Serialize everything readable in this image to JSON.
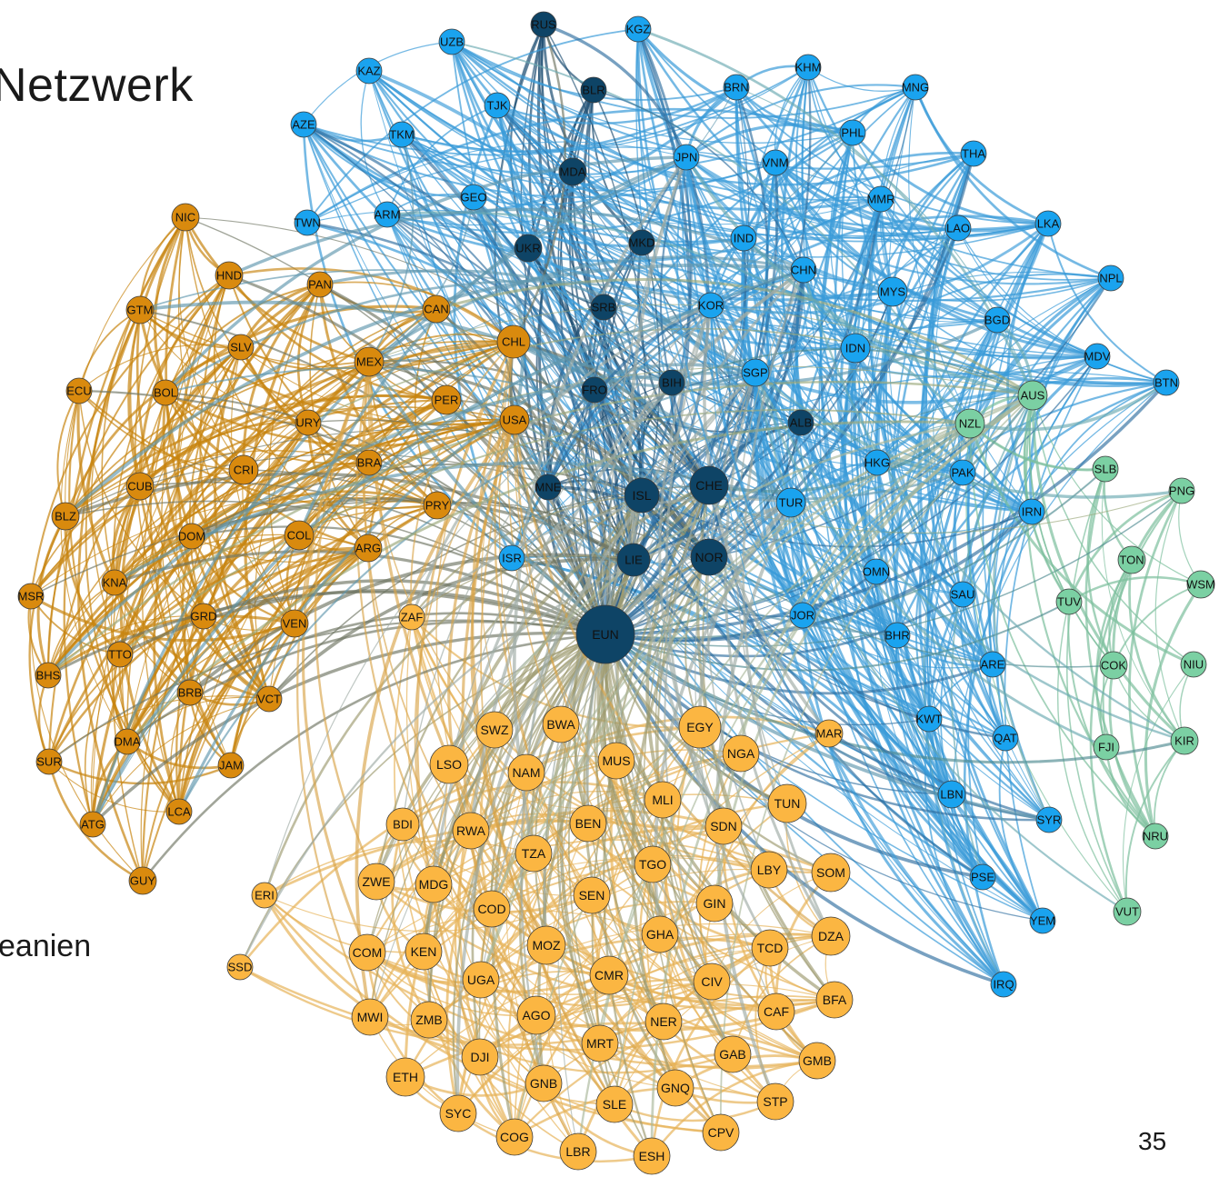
{
  "slide": {
    "title": "Netzwerk",
    "side_text": "eanien",
    "page_number": "35"
  },
  "colors": {
    "gold": "#fbb642",
    "amber": "#d98a0e",
    "navy": "#0e4466",
    "blue": "#1aa3ef",
    "green": "#7bd0a3"
  },
  "network": {
    "nodes": [
      {
        "id": "RUS",
        "group": "navy"
      },
      {
        "id": "KGZ",
        "group": "blue"
      },
      {
        "id": "UZB",
        "group": "blue"
      },
      {
        "id": "KAZ",
        "group": "blue"
      },
      {
        "id": "BLR",
        "group": "navy"
      },
      {
        "id": "TJK",
        "group": "blue"
      },
      {
        "id": "AZE",
        "group": "blue"
      },
      {
        "id": "TKM",
        "group": "blue"
      },
      {
        "id": "MDA",
        "group": "navy"
      },
      {
        "id": "GEO",
        "group": "blue"
      },
      {
        "id": "ARM",
        "group": "blue"
      },
      {
        "id": "UKR",
        "group": "navy"
      },
      {
        "id": "MKD",
        "group": "navy"
      },
      {
        "id": "SRB",
        "group": "navy"
      },
      {
        "id": "BIH",
        "group": "navy"
      },
      {
        "id": "FRO",
        "group": "navy"
      },
      {
        "id": "ALB",
        "group": "navy"
      },
      {
        "id": "CHE",
        "group": "navy"
      },
      {
        "id": "ISL",
        "group": "navy"
      },
      {
        "id": "MNE",
        "group": "navy"
      },
      {
        "id": "LIE",
        "group": "navy"
      },
      {
        "id": "NOR",
        "group": "navy"
      },
      {
        "id": "EUN",
        "group": "navy"
      },
      {
        "id": "KHM",
        "group": "blue"
      },
      {
        "id": "BRN",
        "group": "blue"
      },
      {
        "id": "MNG",
        "group": "blue"
      },
      {
        "id": "PHL",
        "group": "blue"
      },
      {
        "id": "JPN",
        "group": "blue"
      },
      {
        "id": "VNM",
        "group": "blue"
      },
      {
        "id": "THA",
        "group": "blue"
      },
      {
        "id": "MMR",
        "group": "blue"
      },
      {
        "id": "IND",
        "group": "blue"
      },
      {
        "id": "LAO",
        "group": "blue"
      },
      {
        "id": "LKA",
        "group": "blue"
      },
      {
        "id": "CHN",
        "group": "blue"
      },
      {
        "id": "MYS",
        "group": "blue"
      },
      {
        "id": "NPL",
        "group": "blue"
      },
      {
        "id": "KOR",
        "group": "blue"
      },
      {
        "id": "BGD",
        "group": "blue"
      },
      {
        "id": "IDN",
        "group": "blue"
      },
      {
        "id": "MDV",
        "group": "blue"
      },
      {
        "id": "SGP",
        "group": "blue"
      },
      {
        "id": "BTN",
        "group": "blue"
      },
      {
        "id": "AUS",
        "group": "green"
      },
      {
        "id": "NZL",
        "group": "green"
      },
      {
        "id": "HKG",
        "group": "blue"
      },
      {
        "id": "PAK",
        "group": "blue"
      },
      {
        "id": "SLB",
        "group": "green"
      },
      {
        "id": "PNG",
        "group": "green"
      },
      {
        "id": "TUR",
        "group": "blue"
      },
      {
        "id": "IRN",
        "group": "blue"
      },
      {
        "id": "TON",
        "group": "green"
      },
      {
        "id": "WSM",
        "group": "green"
      },
      {
        "id": "OMN",
        "group": "blue"
      },
      {
        "id": "SAU",
        "group": "blue"
      },
      {
        "id": "TUV",
        "group": "green"
      },
      {
        "id": "JOR",
        "group": "blue"
      },
      {
        "id": "BHR",
        "group": "blue"
      },
      {
        "id": "ARE",
        "group": "blue"
      },
      {
        "id": "COK",
        "group": "green"
      },
      {
        "id": "NIU",
        "group": "green"
      },
      {
        "id": "KWT",
        "group": "blue"
      },
      {
        "id": "QAT",
        "group": "blue"
      },
      {
        "id": "FJI",
        "group": "green"
      },
      {
        "id": "KIR",
        "group": "green"
      },
      {
        "id": "LBN",
        "group": "blue"
      },
      {
        "id": "SYR",
        "group": "blue"
      },
      {
        "id": "NRU",
        "group": "green"
      },
      {
        "id": "PSE",
        "group": "blue"
      },
      {
        "id": "YEM",
        "group": "blue"
      },
      {
        "id": "VUT",
        "group": "green"
      },
      {
        "id": "IRQ",
        "group": "blue"
      },
      {
        "id": "ISR",
        "group": "blue"
      },
      {
        "id": "TWN",
        "group": "blue"
      },
      {
        "id": "NIC",
        "group": "amber"
      },
      {
        "id": "HND",
        "group": "amber"
      },
      {
        "id": "PAN",
        "group": "amber"
      },
      {
        "id": "GTM",
        "group": "amber"
      },
      {
        "id": "CAN",
        "group": "amber"
      },
      {
        "id": "CHL",
        "group": "amber"
      },
      {
        "id": "SLV",
        "group": "amber"
      },
      {
        "id": "MEX",
        "group": "amber"
      },
      {
        "id": "ECU",
        "group": "amber"
      },
      {
        "id": "BOL",
        "group": "amber"
      },
      {
        "id": "PER",
        "group": "amber"
      },
      {
        "id": "USA",
        "group": "amber"
      },
      {
        "id": "URY",
        "group": "amber"
      },
      {
        "id": "CRI",
        "group": "amber"
      },
      {
        "id": "BRA",
        "group": "amber"
      },
      {
        "id": "CUB",
        "group": "amber"
      },
      {
        "id": "PRY",
        "group": "amber"
      },
      {
        "id": "BLZ",
        "group": "amber"
      },
      {
        "id": "DOM",
        "group": "amber"
      },
      {
        "id": "COL",
        "group": "amber"
      },
      {
        "id": "ARG",
        "group": "amber"
      },
      {
        "id": "MSR",
        "group": "amber"
      },
      {
        "id": "KNA",
        "group": "amber"
      },
      {
        "id": "GRD",
        "group": "amber"
      },
      {
        "id": "VEN",
        "group": "amber"
      },
      {
        "id": "TTO",
        "group": "amber"
      },
      {
        "id": "BHS",
        "group": "amber"
      },
      {
        "id": "BRB",
        "group": "amber"
      },
      {
        "id": "VCT",
        "group": "amber"
      },
      {
        "id": "DMA",
        "group": "amber"
      },
      {
        "id": "SUR",
        "group": "amber"
      },
      {
        "id": "JAM",
        "group": "amber"
      },
      {
        "id": "LCA",
        "group": "amber"
      },
      {
        "id": "ATG",
        "group": "amber"
      },
      {
        "id": "GUY",
        "group": "amber"
      },
      {
        "id": "ZAF",
        "group": "gold"
      },
      {
        "id": "SWZ",
        "group": "gold"
      },
      {
        "id": "BWA",
        "group": "gold"
      },
      {
        "id": "EGY",
        "group": "gold"
      },
      {
        "id": "MAR",
        "group": "gold"
      },
      {
        "id": "LSO",
        "group": "gold"
      },
      {
        "id": "MUS",
        "group": "gold"
      },
      {
        "id": "NGA",
        "group": "gold"
      },
      {
        "id": "NAM",
        "group": "gold"
      },
      {
        "id": "MLI",
        "group": "gold"
      },
      {
        "id": "TUN",
        "group": "gold"
      },
      {
        "id": "BDI",
        "group": "gold"
      },
      {
        "id": "BEN",
        "group": "gold"
      },
      {
        "id": "SDN",
        "group": "gold"
      },
      {
        "id": "RWA",
        "group": "gold"
      },
      {
        "id": "TZA",
        "group": "gold"
      },
      {
        "id": "TGO",
        "group": "gold"
      },
      {
        "id": "LBY",
        "group": "gold"
      },
      {
        "id": "SOM",
        "group": "gold"
      },
      {
        "id": "ERI",
        "group": "gold"
      },
      {
        "id": "ZWE",
        "group": "gold"
      },
      {
        "id": "MDG",
        "group": "gold"
      },
      {
        "id": "SEN",
        "group": "gold"
      },
      {
        "id": "GIN",
        "group": "gold"
      },
      {
        "id": "COD",
        "group": "gold"
      },
      {
        "id": "GHA",
        "group": "gold"
      },
      {
        "id": "DZA",
        "group": "gold"
      },
      {
        "id": "COM",
        "group": "gold"
      },
      {
        "id": "KEN",
        "group": "gold"
      },
      {
        "id": "MOZ",
        "group": "gold"
      },
      {
        "id": "TCD",
        "group": "gold"
      },
      {
        "id": "CMR",
        "group": "gold"
      },
      {
        "id": "UGA",
        "group": "gold"
      },
      {
        "id": "CIV",
        "group": "gold"
      },
      {
        "id": "SSD",
        "group": "gold"
      },
      {
        "id": "BFA",
        "group": "gold"
      },
      {
        "id": "CAF",
        "group": "gold"
      },
      {
        "id": "AGO",
        "group": "gold"
      },
      {
        "id": "MWI",
        "group": "gold"
      },
      {
        "id": "ZMB",
        "group": "gold"
      },
      {
        "id": "NER",
        "group": "gold"
      },
      {
        "id": "MRT",
        "group": "gold"
      },
      {
        "id": "GAB",
        "group": "gold"
      },
      {
        "id": "DJI",
        "group": "gold"
      },
      {
        "id": "GMB",
        "group": "gold"
      },
      {
        "id": "ETH",
        "group": "gold"
      },
      {
        "id": "GNB",
        "group": "gold"
      },
      {
        "id": "GNQ",
        "group": "gold"
      },
      {
        "id": "SLE",
        "group": "gold"
      },
      {
        "id": "STP",
        "group": "gold"
      },
      {
        "id": "SYC",
        "group": "gold"
      },
      {
        "id": "CPV",
        "group": "gold"
      },
      {
        "id": "COG",
        "group": "gold"
      },
      {
        "id": "LBR",
        "group": "gold"
      },
      {
        "id": "ESH",
        "group": "gold"
      }
    ]
  }
}
